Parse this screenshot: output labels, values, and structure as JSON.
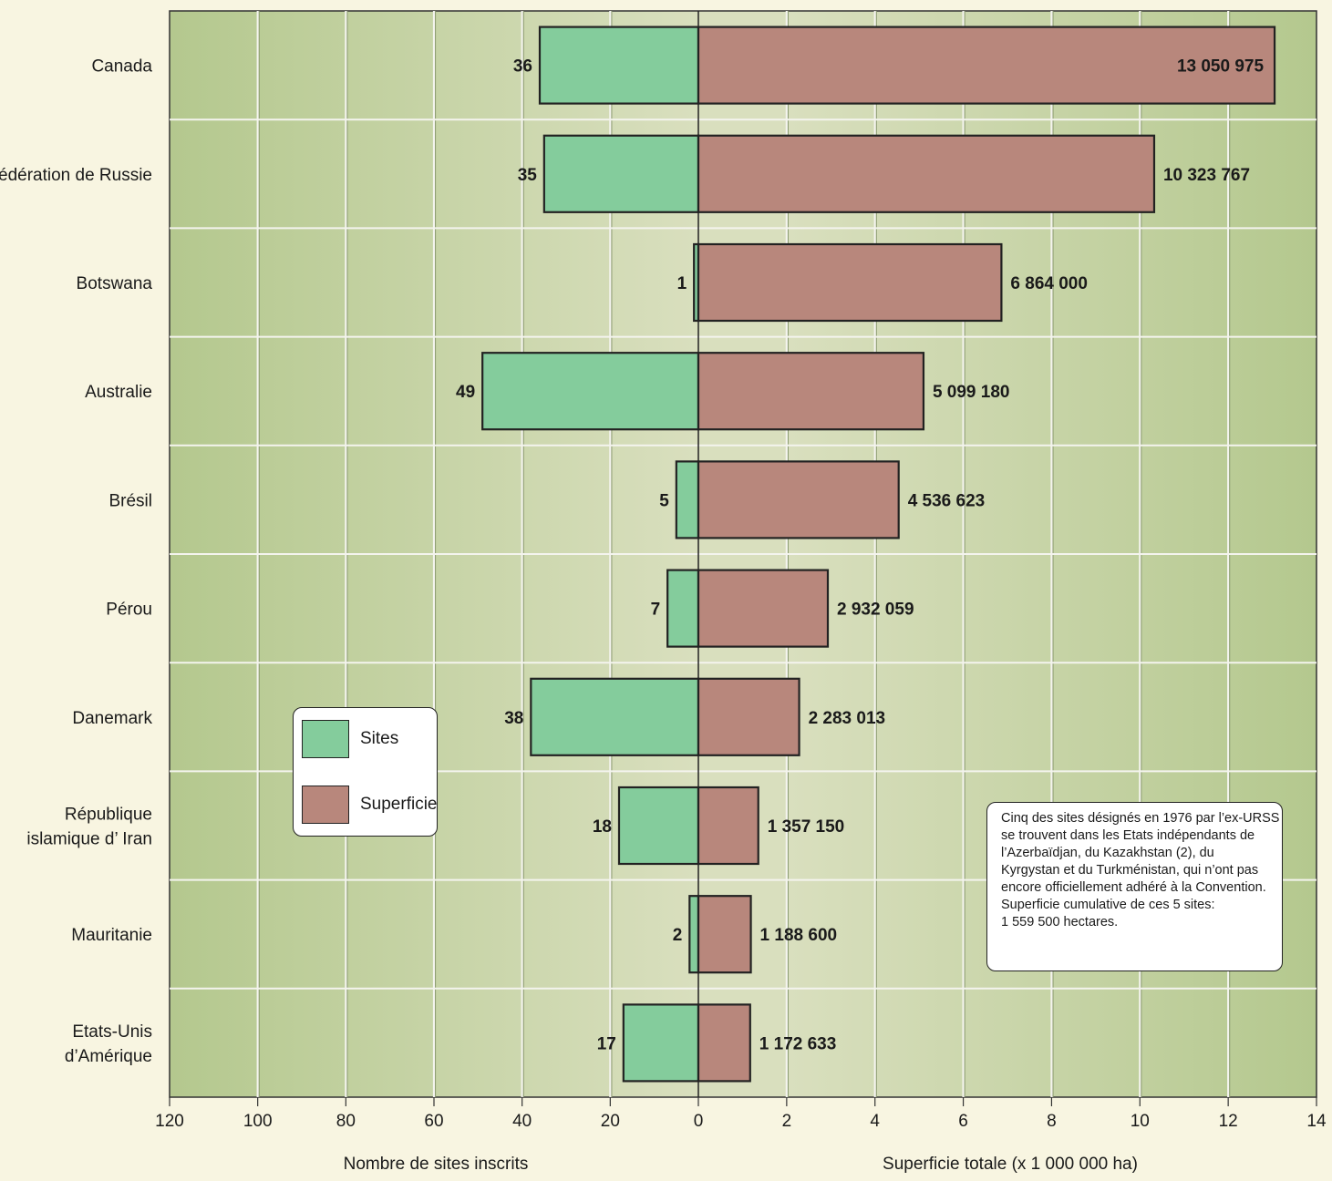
{
  "chart_data": {
    "type": "bar",
    "orientation": "horizontal",
    "layout": "back-to-back",
    "categories": [
      [
        "Canada"
      ],
      [
        "Fédération de Russie"
      ],
      [
        "Botswana"
      ],
      [
        "Australie"
      ],
      [
        "Brésil"
      ],
      [
        "Pérou"
      ],
      [
        "Danemark"
      ],
      [
        "République",
        "islamique d’ Iran"
      ],
      [
        "Mauritanie"
      ],
      [
        "Etats-Unis",
        "d’Amérique"
      ]
    ],
    "series": [
      {
        "name": "Sites",
        "side": "left",
        "color": "#84cc9c",
        "values": [
          36,
          35,
          1,
          49,
          5,
          7,
          38,
          18,
          2,
          17
        ],
        "labels": [
          "36",
          "35",
          "1",
          "49",
          "5",
          "7",
          "38",
          "18",
          "2",
          "17"
        ]
      },
      {
        "name": "Superficie",
        "side": "right",
        "color": "#b8877c",
        "values": [
          13050975,
          10323767,
          6864000,
          5099180,
          4536623,
          2932059,
          2283013,
          1357150,
          1188600,
          1172633
        ],
        "labels": [
          "13 050 975",
          "10 323 767",
          "6 864 000",
          "5 099 180",
          "4 536 623",
          "2 932 059",
          "2 283 013",
          "1 357 150",
          "1 188 600",
          "1 172 633"
        ]
      }
    ],
    "left_axis": {
      "label": "Nombre de sites inscrits",
      "range": [
        0,
        120
      ],
      "ticks": [
        "120",
        "100",
        "80",
        "60",
        "40",
        "20",
        "0"
      ],
      "tick_values": [
        120,
        100,
        80,
        60,
        40,
        20,
        0
      ]
    },
    "right_axis": {
      "label": "Superficie totale (x 1 000 000 ha)",
      "range": [
        0,
        14
      ],
      "ticks": [
        "2",
        "4",
        "6",
        "8",
        "10",
        "12",
        "14"
      ],
      "tick_values": [
        2,
        4,
        6,
        8,
        10,
        12,
        14
      ]
    },
    "grid": true,
    "legend": {
      "position": "bottom-left",
      "items": [
        "Sites",
        "Superficie"
      ]
    },
    "annotation": {
      "position": "bottom-right",
      "lines": [
        "Cinq des sites désignés en 1976 par l’ex-URSS",
        "se trouvent dans les Etats indépendants de",
        "l’Azerbaïdjan, du Kazakhstan (2), du",
        "Kyrgystan et du Turkménistan, qui n’ont pas",
        "encore officiellement adhéré à la Convention.",
        "Superficie cumulative de ces 5 sites:",
        "1 559 500 hectares."
      ]
    }
  },
  "colors": {
    "page_background": "#f8f5e1",
    "plot_edge": "#b5c98f",
    "plot_center": "#d8ddbc",
    "sites": "#84cc9c",
    "superficie": "#b8877c"
  }
}
